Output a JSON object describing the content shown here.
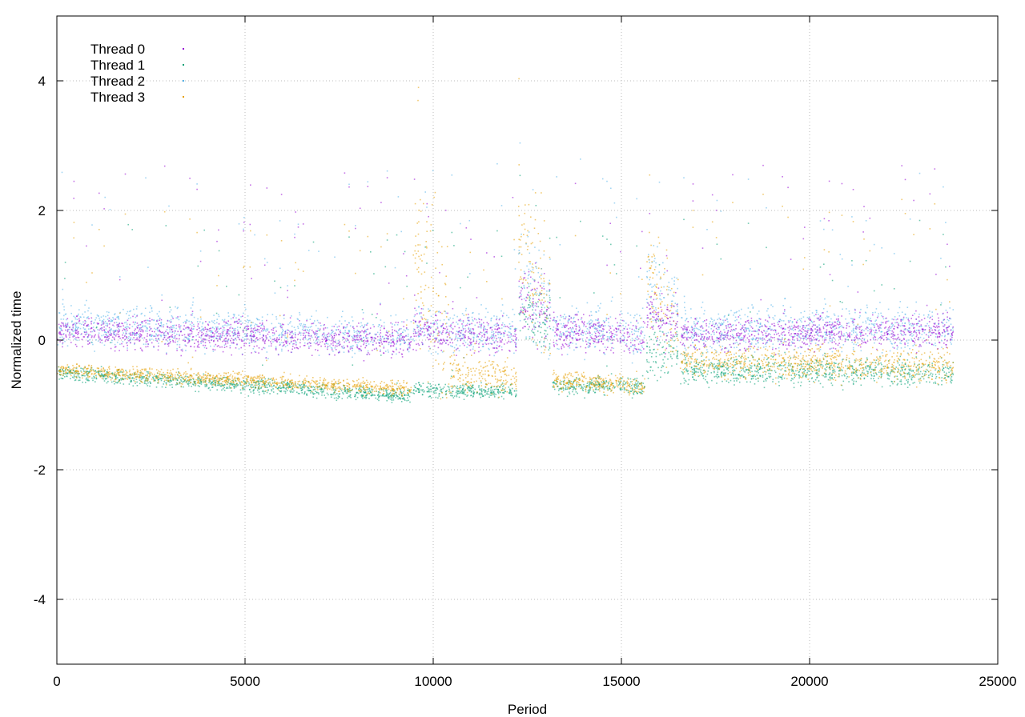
{
  "chart_data": {
    "type": "scatter",
    "title": "",
    "xlabel": "Period",
    "ylabel": "Normalized time",
    "xlim": [
      0,
      25000
    ],
    "ylim": [
      -5,
      5
    ],
    "x_ticks": [
      0,
      5000,
      10000,
      15000,
      20000,
      25000
    ],
    "x_tick_labels": [
      "0",
      "5000",
      "10000",
      "15000",
      "20000",
      "25000"
    ],
    "y_ticks": [
      -4,
      -2,
      0,
      2,
      4
    ],
    "y_tick_labels": [
      "-4",
      "-2",
      "0",
      "2",
      "4"
    ],
    "grid": true,
    "legend_position": "top-left",
    "series": [
      {
        "name": "Thread 0",
        "color": "#9400d3",
        "segments": [
          {
            "x": [
              0,
              9400
            ],
            "y": [
              0.15,
              0.0
            ],
            "spread": 0.18
          },
          {
            "x": [
              9450,
              12200
            ],
            "y": [
              0.15,
              0.05
            ],
            "spread": 0.2
          },
          {
            "x": [
              12250,
              13100
            ],
            "y": [
              0.7,
              0.4
            ],
            "spread": 0.35
          },
          {
            "x": [
              13150,
              15600
            ],
            "y": [
              0.15,
              0.05
            ],
            "spread": 0.2
          },
          {
            "x": [
              15650,
              16500
            ],
            "y": [
              0.4,
              0.3
            ],
            "spread": 0.3
          },
          {
            "x": [
              16550,
              23800
            ],
            "y": [
              0.1,
              0.15
            ],
            "spread": 0.18
          }
        ]
      },
      {
        "name": "Thread 1",
        "color": "#009e73",
        "segments": [
          {
            "x": [
              0,
              9400
            ],
            "y": [
              -0.5,
              -0.85
            ],
            "spread": 0.08
          },
          {
            "x": [
              9450,
              12200
            ],
            "y": [
              -0.75,
              -0.8
            ],
            "spread": 0.08
          },
          {
            "x": [
              12250,
              13100
            ],
            "y": [
              0.5,
              0.3
            ],
            "spread": 0.3
          },
          {
            "x": [
              13150,
              15600
            ],
            "y": [
              -0.7,
              -0.7
            ],
            "spread": 0.1
          },
          {
            "x": [
              15650,
              16500
            ],
            "y": [
              -0.2,
              -0.2
            ],
            "spread": 0.3
          },
          {
            "x": [
              16550,
              23800
            ],
            "y": [
              -0.45,
              -0.5
            ],
            "spread": 0.15
          }
        ]
      },
      {
        "name": "Thread 2",
        "color": "#56b4e9",
        "segments": [
          {
            "x": [
              0,
              9400
            ],
            "y": [
              0.25,
              0.05
            ],
            "spread": 0.22
          },
          {
            "x": [
              9450,
              12200
            ],
            "y": [
              0.2,
              0.1
            ],
            "spread": 0.25
          },
          {
            "x": [
              12250,
              13100
            ],
            "y": [
              1.0,
              0.6
            ],
            "spread": 0.6
          },
          {
            "x": [
              13150,
              15600
            ],
            "y": [
              0.2,
              0.1
            ],
            "spread": 0.25
          },
          {
            "x": [
              15650,
              16500
            ],
            "y": [
              0.8,
              0.5
            ],
            "spread": 0.5
          },
          {
            "x": [
              16550,
              23800
            ],
            "y": [
              0.15,
              0.2
            ],
            "spread": 0.25
          }
        ]
      },
      {
        "name": "Thread 3",
        "color": "#e69f00",
        "segments": [
          {
            "x": [
              0,
              9400
            ],
            "y": [
              -0.45,
              -0.75
            ],
            "spread": 0.08
          },
          {
            "x": [
              9450,
              10400
            ],
            "y": [
              1.5,
              0.0
            ],
            "spread": 0.9
          },
          {
            "x": [
              10400,
              12200
            ],
            "y": [
              -0.5,
              -0.6
            ],
            "spread": 0.2
          },
          {
            "x": [
              12250,
              13100
            ],
            "y": [
              1.5,
              0.5
            ],
            "spread": 0.7
          },
          {
            "x": [
              13150,
              15600
            ],
            "y": [
              -0.6,
              -0.7
            ],
            "spread": 0.1
          },
          {
            "x": [
              15650,
              16500
            ],
            "y": [
              1.0,
              0.2
            ],
            "spread": 0.6
          },
          {
            "x": [
              16550,
              23800
            ],
            "y": [
              -0.3,
              -0.4
            ],
            "spread": 0.18
          }
        ]
      }
    ]
  }
}
